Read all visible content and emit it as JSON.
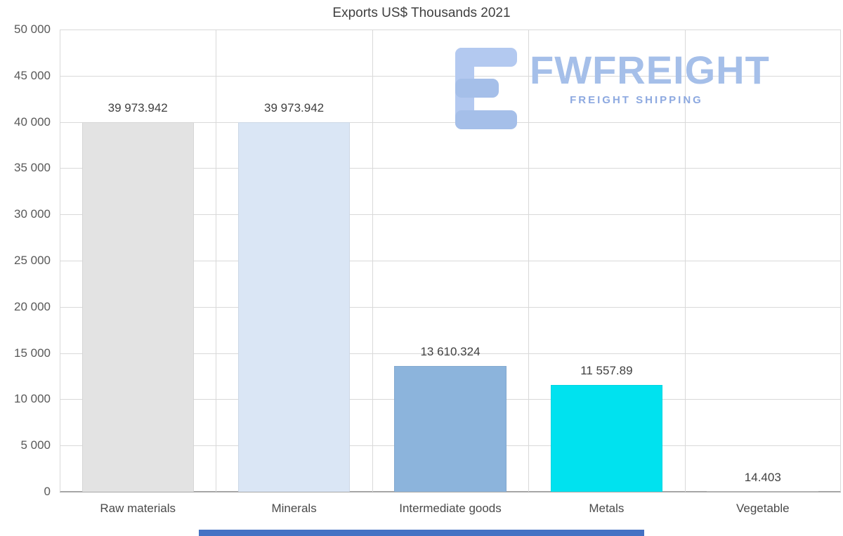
{
  "chart_data": {
    "type": "bar",
    "title": "Exports US$ Thousands 2021",
    "categories": [
      "Raw materials",
      "Minerals",
      "Intermediate goods",
      "Metals",
      "Vegetable"
    ],
    "values": [
      39973.942,
      39973.942,
      13610.324,
      11557.89,
      14.403
    ],
    "value_labels": [
      "39 973.942",
      "39 973.942",
      "13 610.324",
      "11 557.89",
      "14.403"
    ],
    "bar_colors": [
      "#e3e3e3",
      "#dae6f5",
      "#8cb4dc",
      "#00e2ef",
      "#c8c8c8"
    ],
    "ylim": [
      0,
      50000
    ],
    "y_ticks": [
      {
        "value": 0,
        "label": "0"
      },
      {
        "value": 5000,
        "label": "5 000"
      },
      {
        "value": 10000,
        "label": "10 000"
      },
      {
        "value": 15000,
        "label": "15 000"
      },
      {
        "value": 20000,
        "label": "20 000"
      },
      {
        "value": 25000,
        "label": "25 000"
      },
      {
        "value": 30000,
        "label": "30 000"
      },
      {
        "value": 35000,
        "label": "35 000"
      },
      {
        "value": 40000,
        "label": "40 000"
      },
      {
        "value": 45000,
        "label": "45 000"
      },
      {
        "value": 50000,
        "label": "50 000"
      }
    ],
    "xlabel": "",
    "ylabel": "",
    "grid": true,
    "legend": "none"
  },
  "watermark": {
    "brand": "FWFREIGHT",
    "tagline": "FREIGHT SHIPPING",
    "brand_color": "#a5bfe9",
    "tagline_color": "#8da9e0"
  },
  "colors": {
    "background": "#ffffff",
    "grid": "#d9d9d9",
    "axis_line": "#a6a6a6",
    "title_text": "#404040",
    "tick_text": "#595959",
    "value_label_text": "#404040",
    "bottom_bar": "#4472c4"
  }
}
